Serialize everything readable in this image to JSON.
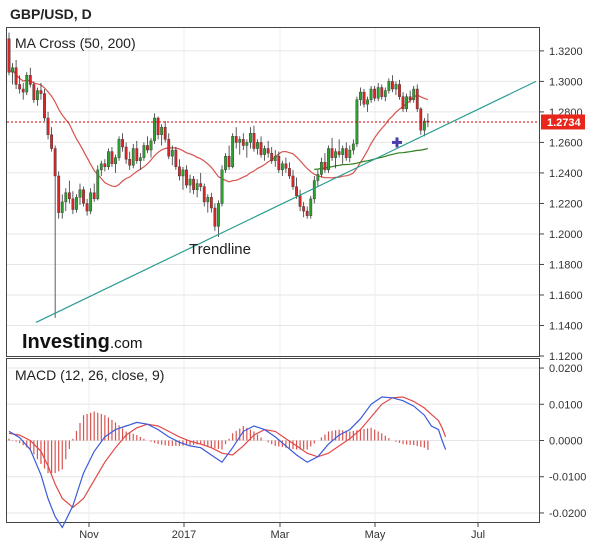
{
  "chart_data": [
    {
      "type": "candlestick",
      "title": "GBP/USD, D",
      "indicator_label": "MA Cross (50, 200)",
      "ylim": [
        1.12,
        1.335
      ],
      "yticks": [
        "1.3200",
        "1.3000",
        "1.2800",
        "1.2600",
        "1.2400",
        "1.2200",
        "1.2000",
        "1.1800",
        "1.1600",
        "1.1400",
        "1.1200"
      ],
      "current_price": "1.2734",
      "current_price_value": 1.2734,
      "annotation": "Trendline",
      "brand": {
        "name": "Investing",
        "suffix": ".com"
      },
      "series": [
        {
          "name": "MA 50",
          "color": "#d9534f"
        },
        {
          "name": "MA 200",
          "color": "#2e7d1e"
        }
      ],
      "colors": {
        "up": "#2ca02c",
        "down": "#d62728",
        "trendline": "#2a9d8f",
        "price_line": "#cc0000"
      },
      "trendline": {
        "from": [
          "2016-10-07",
          1.142
        ],
        "to": [
          "2017-07-02",
          1.3
        ]
      },
      "ma_cross_point": [
        "2017-05-10",
        1.26
      ],
      "candles_ohlc": [
        [
          1.328,
          1.332,
          1.304,
          1.306
        ],
        [
          1.306,
          1.312,
          1.298,
          1.309
        ],
        [
          1.309,
          1.314,
          1.295,
          1.298
        ],
        [
          1.298,
          1.304,
          1.292,
          1.295
        ],
        [
          1.295,
          1.299,
          1.288,
          1.293
        ],
        [
          1.293,
          1.306,
          1.291,
          1.304
        ],
        [
          1.304,
          1.309,
          1.296,
          1.298
        ],
        [
          1.298,
          1.3,
          1.286,
          1.288
        ],
        [
          1.288,
          1.296,
          1.284,
          1.294
        ],
        [
          1.294,
          1.299,
          1.288,
          1.292
        ],
        [
          1.292,
          1.295,
          1.274,
          1.276
        ],
        [
          1.276,
          1.28,
          1.262,
          1.265
        ],
        [
          1.265,
          1.27,
          1.254,
          1.256
        ],
        [
          1.256,
          1.258,
          1.145,
          1.238
        ],
        [
          1.238,
          1.241,
          1.21,
          1.214
        ],
        [
          1.214,
          1.226,
          1.21,
          1.221
        ],
        [
          1.221,
          1.23,
          1.215,
          1.227
        ],
        [
          1.227,
          1.235,
          1.22,
          1.223
        ],
        [
          1.223,
          1.228,
          1.213,
          1.216
        ],
        [
          1.216,
          1.226,
          1.214,
          1.224
        ],
        [
          1.224,
          1.233,
          1.219,
          1.229
        ],
        [
          1.229,
          1.231,
          1.218,
          1.22
        ],
        [
          1.22,
          1.223,
          1.212,
          1.215
        ],
        [
          1.215,
          1.23,
          1.213,
          1.227
        ],
        [
          1.227,
          1.233,
          1.221,
          1.223
        ],
        [
          1.223,
          1.245,
          1.222,
          1.242
        ],
        [
          1.242,
          1.248,
          1.238,
          1.246
        ],
        [
          1.246,
          1.249,
          1.241,
          1.244
        ],
        [
          1.244,
          1.256,
          1.242,
          1.254
        ],
        [
          1.254,
          1.257,
          1.244,
          1.246
        ],
        [
          1.246,
          1.252,
          1.24,
          1.25
        ],
        [
          1.25,
          1.264,
          1.248,
          1.262
        ],
        [
          1.262,
          1.266,
          1.254,
          1.257
        ],
        [
          1.257,
          1.26,
          1.246,
          1.249
        ],
        [
          1.249,
          1.254,
          1.242,
          1.245
        ],
        [
          1.245,
          1.259,
          1.243,
          1.256
        ],
        [
          1.256,
          1.261,
          1.246,
          1.248
        ],
        [
          1.248,
          1.253,
          1.242,
          1.25
        ],
        [
          1.25,
          1.26,
          1.248,
          1.258
        ],
        [
          1.258,
          1.264,
          1.253,
          1.255
        ],
        [
          1.255,
          1.263,
          1.25,
          1.261
        ],
        [
          1.261,
          1.279,
          1.259,
          1.276
        ],
        [
          1.276,
          1.277,
          1.262,
          1.265
        ],
        [
          1.265,
          1.272,
          1.258,
          1.27
        ],
        [
          1.27,
          1.274,
          1.26,
          1.262
        ],
        [
          1.262,
          1.266,
          1.249,
          1.251
        ],
        [
          1.251,
          1.258,
          1.245,
          1.255
        ],
        [
          1.255,
          1.257,
          1.242,
          1.244
        ],
        [
          1.244,
          1.249,
          1.235,
          1.238
        ],
        [
          1.238,
          1.244,
          1.229,
          1.242
        ],
        [
          1.242,
          1.245,
          1.23,
          1.232
        ],
        [
          1.232,
          1.239,
          1.227,
          1.236
        ],
        [
          1.236,
          1.238,
          1.226,
          1.229
        ],
        [
          1.229,
          1.236,
          1.224,
          1.233
        ],
        [
          1.233,
          1.24,
          1.228,
          1.231
        ],
        [
          1.231,
          1.233,
          1.218,
          1.221
        ],
        [
          1.221,
          1.226,
          1.214,
          1.224
        ],
        [
          1.224,
          1.227,
          1.214,
          1.217
        ],
        [
          1.217,
          1.22,
          1.202,
          1.205
        ],
        [
          1.205,
          1.222,
          1.198,
          1.22
        ],
        [
          1.22,
          1.245,
          1.218,
          1.242
        ],
        [
          1.242,
          1.253,
          1.24,
          1.251
        ],
        [
          1.251,
          1.258,
          1.242,
          1.244
        ],
        [
          1.244,
          1.266,
          1.243,
          1.264
        ],
        [
          1.264,
          1.27,
          1.256,
          1.26
        ],
        [
          1.26,
          1.264,
          1.252,
          1.262
        ],
        [
          1.262,
          1.266,
          1.255,
          1.258
        ],
        [
          1.258,
          1.262,
          1.25,
          1.26
        ],
        [
          1.26,
          1.27,
          1.256,
          1.266
        ],
        [
          1.266,
          1.271,
          1.254,
          1.256
        ],
        [
          1.256,
          1.262,
          1.252,
          1.26
        ],
        [
          1.26,
          1.264,
          1.25,
          1.252
        ],
        [
          1.252,
          1.258,
          1.248,
          1.256
        ],
        [
          1.256,
          1.261,
          1.25,
          1.253
        ],
        [
          1.253,
          1.257,
          1.246,
          1.248
        ],
        [
          1.248,
          1.255,
          1.244,
          1.251
        ],
        [
          1.251,
          1.254,
          1.24,
          1.242
        ],
        [
          1.242,
          1.248,
          1.238,
          1.246
        ],
        [
          1.246,
          1.25,
          1.24,
          1.243
        ],
        [
          1.243,
          1.247,
          1.236,
          1.238
        ],
        [
          1.238,
          1.242,
          1.229,
          1.231
        ],
        [
          1.231,
          1.237,
          1.223,
          1.225
        ],
        [
          1.225,
          1.229,
          1.215,
          1.218
        ],
        [
          1.218,
          1.221,
          1.211,
          1.215
        ],
        [
          1.215,
          1.218,
          1.21,
          1.212
        ],
        [
          1.212,
          1.225,
          1.21,
          1.223
        ],
        [
          1.223,
          1.238,
          1.22,
          1.235
        ],
        [
          1.235,
          1.242,
          1.231,
          1.239
        ],
        [
          1.239,
          1.25,
          1.237,
          1.247
        ],
        [
          1.247,
          1.253,
          1.24,
          1.242
        ],
        [
          1.242,
          1.258,
          1.24,
          1.256
        ],
        [
          1.256,
          1.263,
          1.248,
          1.25
        ],
        [
          1.25,
          1.256,
          1.243,
          1.254
        ],
        [
          1.254,
          1.262,
          1.25,
          1.252
        ],
        [
          1.252,
          1.258,
          1.246,
          1.256
        ],
        [
          1.256,
          1.26,
          1.248,
          1.25
        ],
        [
          1.25,
          1.258,
          1.247,
          1.255
        ],
        [
          1.255,
          1.262,
          1.252,
          1.259
        ],
        [
          1.259,
          1.29,
          1.257,
          1.288
        ],
        [
          1.288,
          1.296,
          1.284,
          1.293
        ],
        [
          1.293,
          1.295,
          1.283,
          1.285
        ],
        [
          1.285,
          1.29,
          1.28,
          1.288
        ],
        [
          1.288,
          1.297,
          1.286,
          1.295
        ],
        [
          1.295,
          1.297,
          1.287,
          1.289
        ],
        [
          1.289,
          1.299,
          1.287,
          1.296
        ],
        [
          1.296,
          1.298,
          1.288,
          1.29
        ],
        [
          1.29,
          1.296,
          1.287,
          1.294
        ],
        [
          1.294,
          1.302,
          1.292,
          1.3
        ],
        [
          1.3,
          1.304,
          1.293,
          1.295
        ],
        [
          1.295,
          1.3,
          1.291,
          1.298
        ],
        [
          1.298,
          1.301,
          1.288,
          1.29
        ],
        [
          1.29,
          1.293,
          1.28,
          1.282
        ],
        [
          1.282,
          1.292,
          1.28,
          1.29
        ],
        [
          1.29,
          1.294,
          1.286,
          1.288
        ],
        [
          1.288,
          1.297,
          1.286,
          1.295
        ],
        [
          1.295,
          1.298,
          1.28,
          1.282
        ],
        [
          1.282,
          1.283,
          1.265,
          1.268
        ],
        [
          1.268,
          1.276,
          1.264,
          1.274
        ],
        [
          1.274,
          1.279,
          1.27,
          1.2734
        ]
      ]
    },
    {
      "type": "line",
      "indicator_label": "MACD (12, 26, close, 9)",
      "ylim": [
        -0.0225,
        0.0225
      ],
      "yticks": [
        "0.0200",
        "0.0100",
        "0.0000",
        "-0.0100",
        "-0.0200"
      ],
      "xticks": [
        "Nov",
        "2017",
        "Mar",
        "May",
        "Jul"
      ],
      "series": [
        {
          "name": "MACD",
          "color": "#3a5bd9"
        },
        {
          "name": "Signal",
          "color": "#e04848"
        },
        {
          "name": "Histogram",
          "color": "#d9534f"
        }
      ],
      "macd_points": [
        [
          0,
          0.0025
        ],
        [
          3,
          0.0008
        ],
        [
          6,
          -0.0025
        ],
        [
          9,
          -0.0095
        ],
        [
          11,
          -0.016
        ],
        [
          13,
          -0.021
        ],
        [
          15,
          -0.024
        ],
        [
          18,
          -0.018
        ],
        [
          21,
          -0.009
        ],
        [
          24,
          -0.003
        ],
        [
          27,
          0.001
        ],
        [
          30,
          0.003
        ],
        [
          33,
          0.004
        ],
        [
          36,
          0.005
        ],
        [
          39,
          0.0045
        ],
        [
          42,
          0.003
        ],
        [
          45,
          0.001
        ],
        [
          48,
          -0.0005
        ],
        [
          51,
          -0.0015
        ],
        [
          54,
          -0.002
        ],
        [
          57,
          -0.004
        ],
        [
          60,
          -0.006
        ],
        [
          63,
          -0.002
        ],
        [
          66,
          0.0025
        ],
        [
          69,
          0.004
        ],
        [
          72,
          0.003
        ],
        [
          75,
          0.001
        ],
        [
          78,
          -0.0015
        ],
        [
          81,
          -0.004
        ],
        [
          84,
          -0.006
        ],
        [
          87,
          -0.0045
        ],
        [
          90,
          -0.001
        ],
        [
          93,
          0.0015
        ],
        [
          96,
          0.003
        ],
        [
          99,
          0.006
        ],
        [
          102,
          0.01
        ],
        [
          105,
          0.012
        ],
        [
          108,
          0.0118
        ],
        [
          111,
          0.011
        ],
        [
          114,
          0.0095
        ],
        [
          117,
          0.007
        ],
        [
          119,
          0.004
        ],
        [
          121,
          0.003
        ],
        [
          122,
          0.0
        ],
        [
          123,
          -0.0025
        ]
      ],
      "signal_points": [
        [
          0,
          0.002
        ],
        [
          3,
          0.0015
        ],
        [
          6,
          0.0
        ],
        [
          9,
          -0.003
        ],
        [
          11,
          -0.007
        ],
        [
          13,
          -0.012
        ],
        [
          15,
          -0.016
        ],
        [
          18,
          -0.0185
        ],
        [
          21,
          -0.016
        ],
        [
          24,
          -0.011
        ],
        [
          27,
          -0.006
        ],
        [
          30,
          -0.002
        ],
        [
          33,
          0.0015
        ],
        [
          36,
          0.0035
        ],
        [
          39,
          0.0045
        ],
        [
          42,
          0.004
        ],
        [
          45,
          0.0025
        ],
        [
          48,
          0.001
        ],
        [
          51,
          -0.0002
        ],
        [
          54,
          -0.001
        ],
        [
          57,
          -0.002
        ],
        [
          60,
          -0.0035
        ],
        [
          63,
          -0.004
        ],
        [
          66,
          -0.0015
        ],
        [
          69,
          0.0015
        ],
        [
          72,
          0.003
        ],
        [
          75,
          0.0025
        ],
        [
          78,
          0.0005
        ],
        [
          81,
          -0.0015
        ],
        [
          84,
          -0.0035
        ],
        [
          87,
          -0.0045
        ],
        [
          90,
          -0.0035
        ],
        [
          93,
          -0.0015
        ],
        [
          96,
          0.0005
        ],
        [
          99,
          0.003
        ],
        [
          102,
          0.0065
        ],
        [
          105,
          0.01
        ],
        [
          108,
          0.0118
        ],
        [
          111,
          0.012
        ],
        [
          114,
          0.0108
        ],
        [
          117,
          0.009
        ],
        [
          119,
          0.0072
        ],
        [
          121,
          0.0055
        ],
        [
          122,
          0.0035
        ],
        [
          123,
          0.001
        ]
      ]
    }
  ]
}
